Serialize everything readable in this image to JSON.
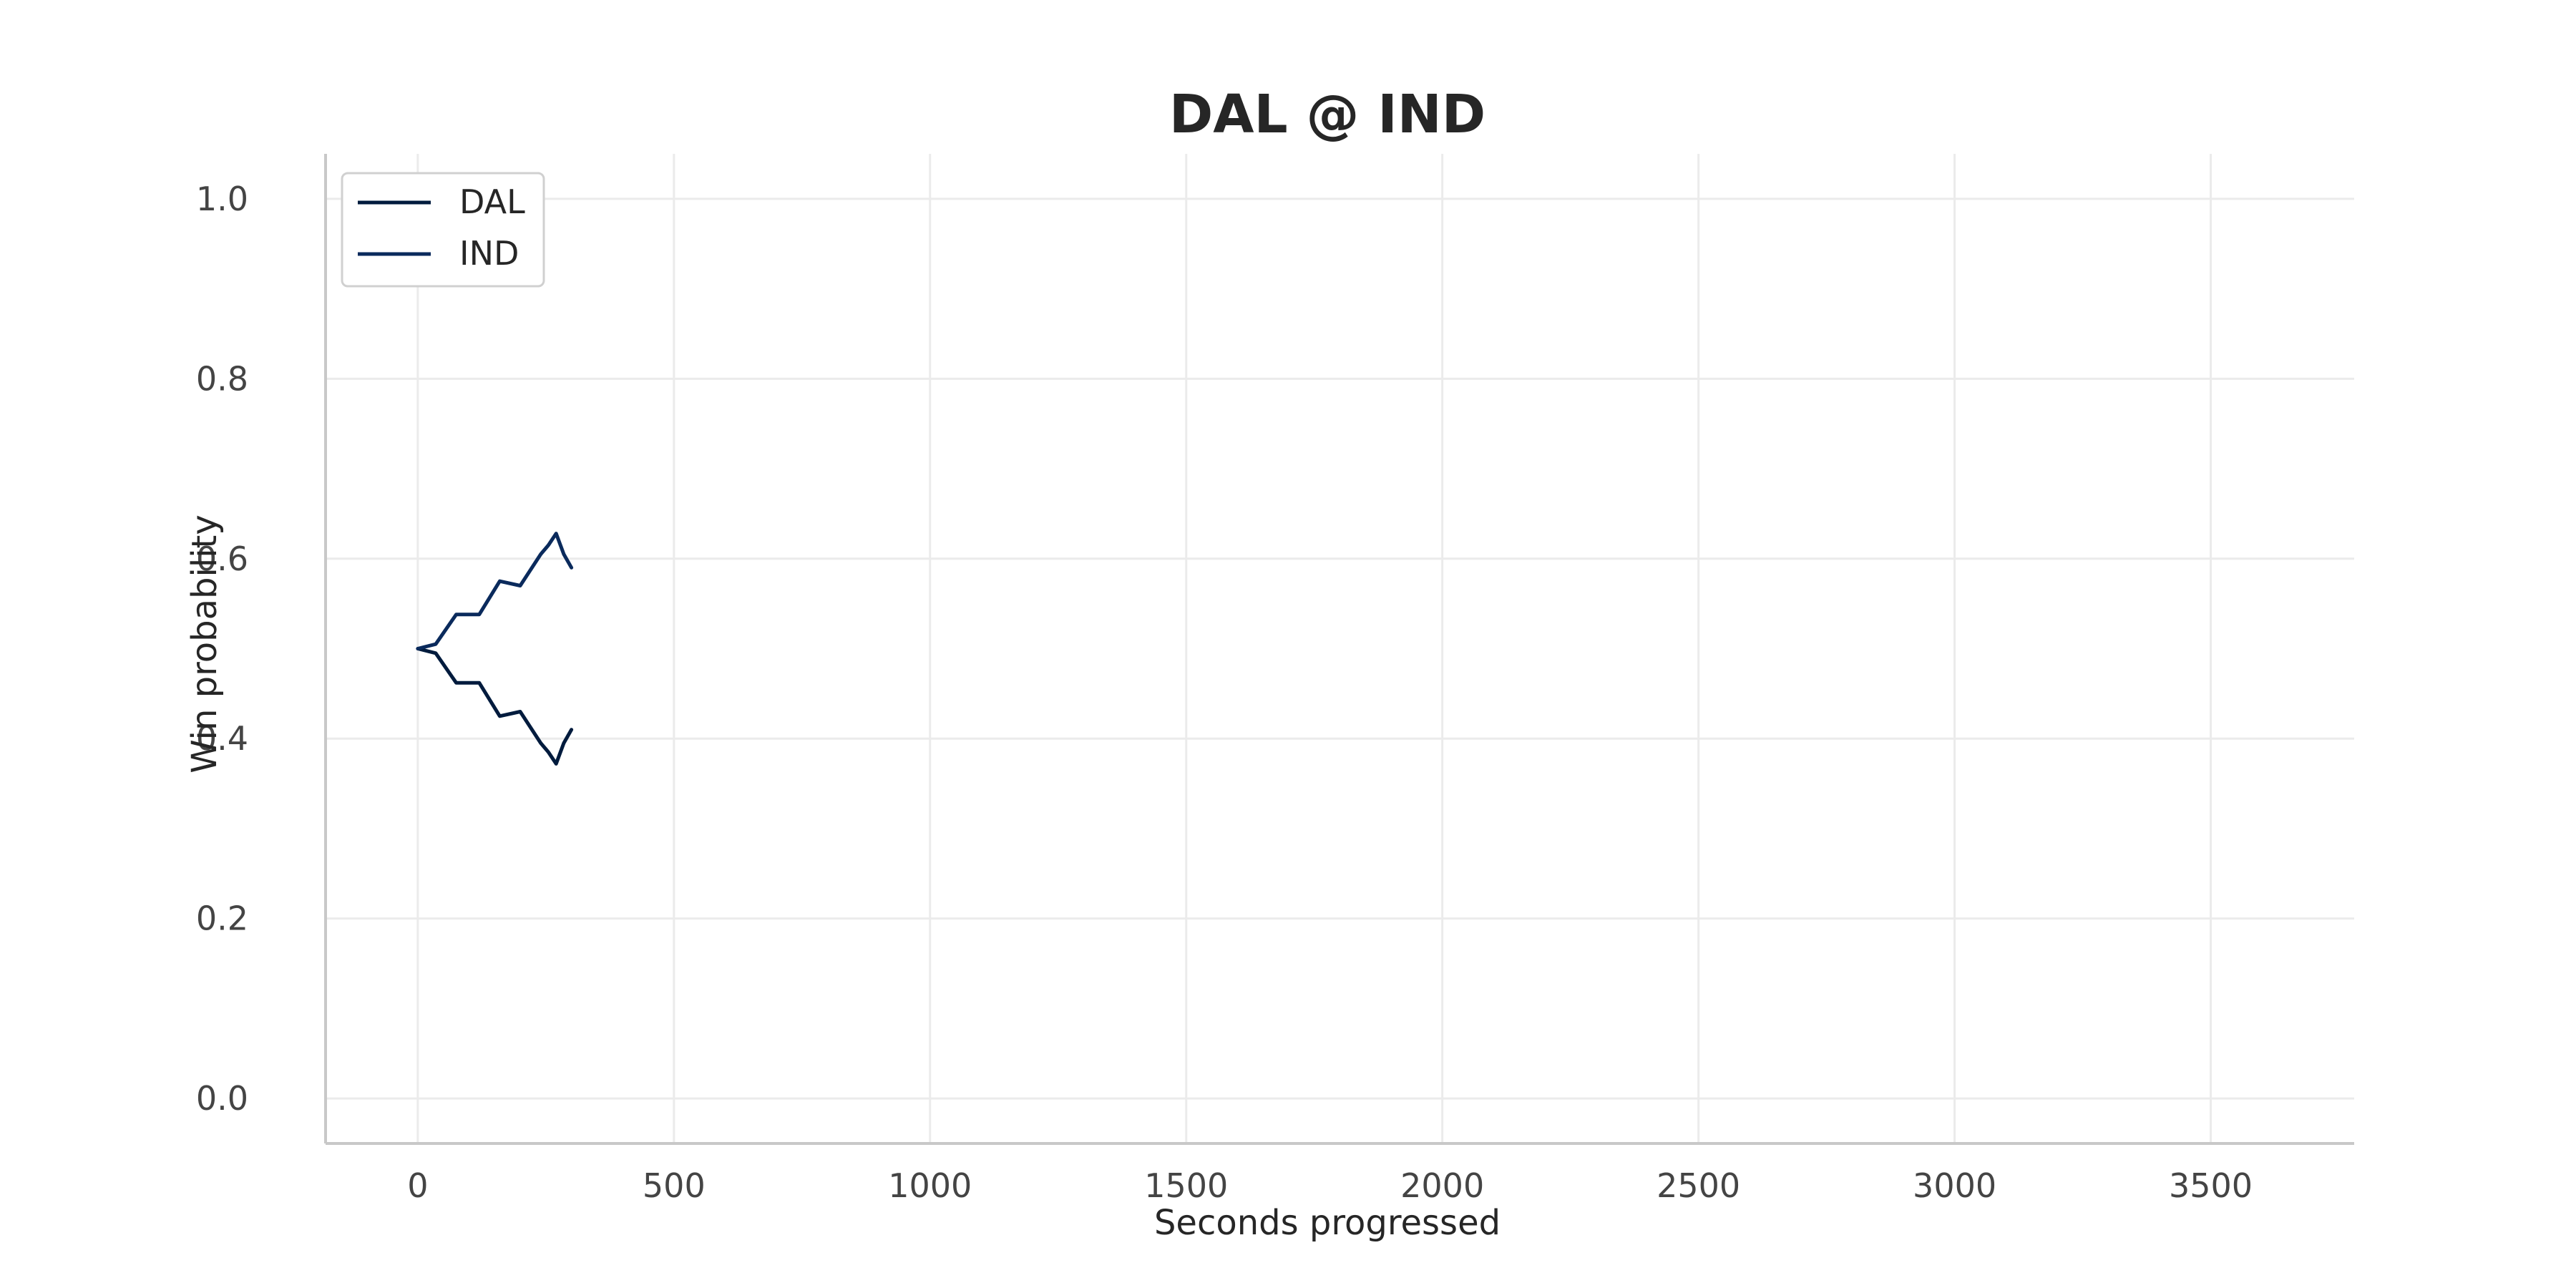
{
  "chart_data": {
    "type": "line",
    "title": "DAL @ IND",
    "xlabel": "Seconds progressed",
    "ylabel": "Win probability",
    "xlim": [
      -180,
      3780
    ],
    "ylim": [
      -0.05,
      1.05
    ],
    "xticks": [
      0,
      500,
      1000,
      1500,
      2000,
      2500,
      3000,
      3500
    ],
    "yticks": [
      0.0,
      0.2,
      0.4,
      0.6,
      0.8,
      1.0
    ],
    "grid": true,
    "legend_position": "top-left",
    "colors": {
      "DAL": "#001b3d",
      "IND": "#0a2a5c"
    },
    "series": [
      {
        "name": "DAL",
        "x": [
          0,
          35,
          75,
          120,
          160,
          200,
          240,
          255,
          270,
          285,
          300
        ],
        "y": [
          0.5,
          0.495,
          0.462,
          0.462,
          0.425,
          0.43,
          0.395,
          0.385,
          0.372,
          0.395,
          0.41
        ]
      },
      {
        "name": "IND",
        "x": [
          0,
          35,
          75,
          120,
          160,
          200,
          240,
          255,
          270,
          285,
          300
        ],
        "y": [
          0.5,
          0.505,
          0.538,
          0.538,
          0.575,
          0.57,
          0.605,
          0.615,
          0.628,
          0.605,
          0.59
        ]
      }
    ]
  }
}
